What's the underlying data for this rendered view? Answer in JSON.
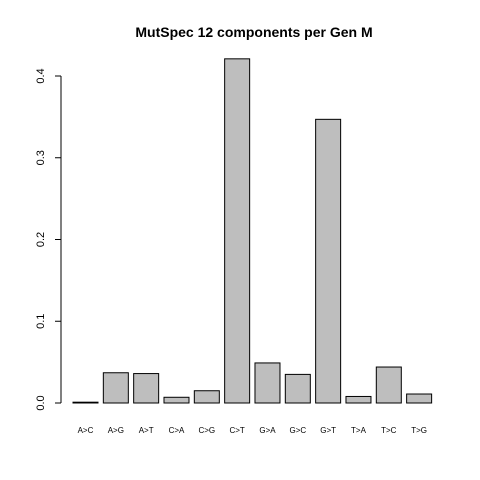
{
  "chart_data": {
    "type": "bar",
    "title": "MutSpec 12 components per Gen M",
    "xlabel": "",
    "ylabel": "",
    "categories": [
      "A>C",
      "A>G",
      "A>T",
      "C>A",
      "C>G",
      "C>T",
      "G>A",
      "G>C",
      "G>T",
      "T>A",
      "T>C",
      "T>G"
    ],
    "values": [
      0.001,
      0.037,
      0.036,
      0.007,
      0.015,
      0.421,
      0.049,
      0.035,
      0.347,
      0.008,
      0.044,
      0.011
    ],
    "ylim": [
      0,
      0.42
    ],
    "yticks": [
      0.0,
      0.1,
      0.2,
      0.3,
      0.4
    ],
    "ytick_labels": [
      "0.0",
      "0.1",
      "0.2",
      "0.3",
      "0.4"
    ],
    "grid": false,
    "legend": "none",
    "colors": {
      "bar_fill": "#bebebe",
      "bar_stroke": "#000000",
      "axis": "#000000",
      "background": "#ffffff"
    }
  }
}
